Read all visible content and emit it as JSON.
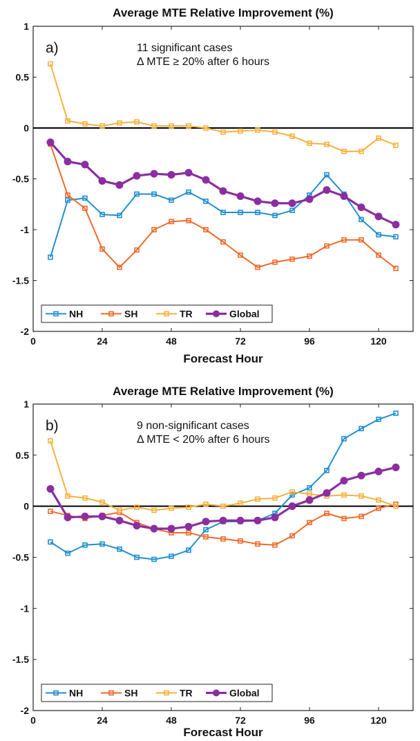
{
  "chart_data": [
    {
      "type": "line",
      "panel_label": "a)",
      "title": "Average MTE Relative Improvement (%)",
      "xlabel": "Forecast Hour",
      "ylabel": "",
      "annotation": [
        "11 significant cases",
        "Δ MTE ≥ 20% after 6 hours"
      ],
      "xlim": [
        0,
        132
      ],
      "ylim": [
        -2,
        1
      ],
      "xticks": [
        0,
        24,
        48,
        72,
        96,
        120
      ],
      "yticks": [
        1,
        0.5,
        0,
        -0.5,
        -1,
        -1.5,
        -2
      ],
      "ytick_labels": [
        "1",
        "0.5",
        "0",
        "-0.5",
        "-1",
        "-1.5",
        "-2"
      ],
      "zero_line": true,
      "grid": false,
      "legend_position": "bottom-left",
      "x": [
        6,
        12,
        18,
        24,
        30,
        36,
        42,
        48,
        54,
        60,
        66,
        72,
        78,
        84,
        90,
        96,
        102,
        108,
        114,
        120,
        126
      ],
      "series": [
        {
          "name": "NH",
          "color": "#1f8fcf",
          "marker": "square",
          "values": [
            -1.27,
            -0.71,
            -0.69,
            -0.85,
            -0.86,
            -0.65,
            -0.65,
            -0.71,
            -0.63,
            -0.72,
            -0.83,
            -0.83,
            -0.83,
            -0.86,
            -0.81,
            -0.66,
            -0.46,
            -0.65,
            -0.9,
            -1.05,
            -1.07
          ]
        },
        {
          "name": "SH",
          "color": "#ee6a2a",
          "marker": "square",
          "values": [
            -0.16,
            -0.66,
            -0.79,
            -1.19,
            -1.37,
            -1.2,
            -1.0,
            -0.92,
            -0.91,
            -1.0,
            -1.12,
            -1.25,
            -1.37,
            -1.32,
            -1.29,
            -1.26,
            -1.16,
            -1.1,
            -1.1,
            -1.25,
            -1.38
          ]
        },
        {
          "name": "TR",
          "color": "#f6b13d",
          "marker": "square",
          "values": [
            0.63,
            0.07,
            0.04,
            0.02,
            0.05,
            0.06,
            0.02,
            0.02,
            0.02,
            0.0,
            -0.04,
            -0.03,
            -0.02,
            -0.04,
            -0.08,
            -0.15,
            -0.16,
            -0.23,
            -0.23,
            -0.1,
            -0.17
          ]
        },
        {
          "name": "Global",
          "color": "#8a2ea0",
          "marker": "circle",
          "values": [
            -0.14,
            -0.33,
            -0.36,
            -0.52,
            -0.56,
            -0.47,
            -0.45,
            -0.46,
            -0.44,
            -0.51,
            -0.62,
            -0.67,
            -0.72,
            -0.74,
            -0.74,
            -0.7,
            -0.61,
            -0.67,
            -0.78,
            -0.87,
            -0.95
          ]
        }
      ]
    },
    {
      "type": "line",
      "panel_label": "b)",
      "title": "Average MTE Relative Improvement (%)",
      "xlabel": "Forecast Hour",
      "ylabel": "",
      "annotation": [
        "9 non-significant cases",
        "Δ MTE < 20% after 6 hours"
      ],
      "xlim": [
        0,
        132
      ],
      "ylim": [
        -2,
        1
      ],
      "xticks": [
        0,
        24,
        48,
        72,
        96,
        120
      ],
      "yticks": [
        1,
        0.5,
        0,
        -0.5,
        -1,
        -1.5,
        -2
      ],
      "ytick_labels": [
        "1",
        "0.5",
        "0",
        "-0.5",
        "-1",
        "-1.5",
        "-2"
      ],
      "zero_line": true,
      "grid": false,
      "legend_position": "bottom-left",
      "x": [
        6,
        12,
        18,
        24,
        30,
        36,
        42,
        48,
        54,
        60,
        66,
        72,
        78,
        84,
        90,
        96,
        102,
        108,
        114,
        120,
        126
      ],
      "series": [
        {
          "name": "NH",
          "color": "#1f8fcf",
          "marker": "square",
          "values": [
            -0.35,
            -0.46,
            -0.38,
            -0.37,
            -0.42,
            -0.5,
            -0.52,
            -0.49,
            -0.43,
            -0.23,
            -0.15,
            -0.15,
            -0.14,
            -0.07,
            0.11,
            0.18,
            0.35,
            0.66,
            0.76,
            0.85,
            0.91
          ]
        },
        {
          "name": "SH",
          "color": "#ee6a2a",
          "marker": "square",
          "values": [
            -0.05,
            -0.09,
            -0.12,
            -0.09,
            -0.06,
            -0.16,
            -0.22,
            -0.26,
            -0.26,
            -0.3,
            -0.32,
            -0.34,
            -0.37,
            -0.38,
            -0.29,
            -0.16,
            -0.07,
            -0.12,
            -0.1,
            -0.02,
            0.02
          ]
        },
        {
          "name": "TR",
          "color": "#f6b13d",
          "marker": "square",
          "values": [
            0.64,
            0.1,
            0.08,
            0.04,
            -0.04,
            -0.01,
            -0.04,
            -0.02,
            -0.01,
            0.02,
            0.0,
            0.03,
            0.07,
            0.08,
            0.14,
            0.12,
            0.1,
            0.11,
            0.1,
            0.06,
            0.0
          ]
        },
        {
          "name": "Global",
          "color": "#8a2ea0",
          "marker": "circle",
          "values": [
            0.17,
            -0.11,
            -0.1,
            -0.1,
            -0.14,
            -0.19,
            -0.22,
            -0.22,
            -0.2,
            -0.15,
            -0.14,
            -0.14,
            -0.14,
            -0.11,
            0.0,
            0.06,
            0.13,
            0.25,
            0.3,
            0.34,
            0.38
          ]
        }
      ]
    }
  ]
}
